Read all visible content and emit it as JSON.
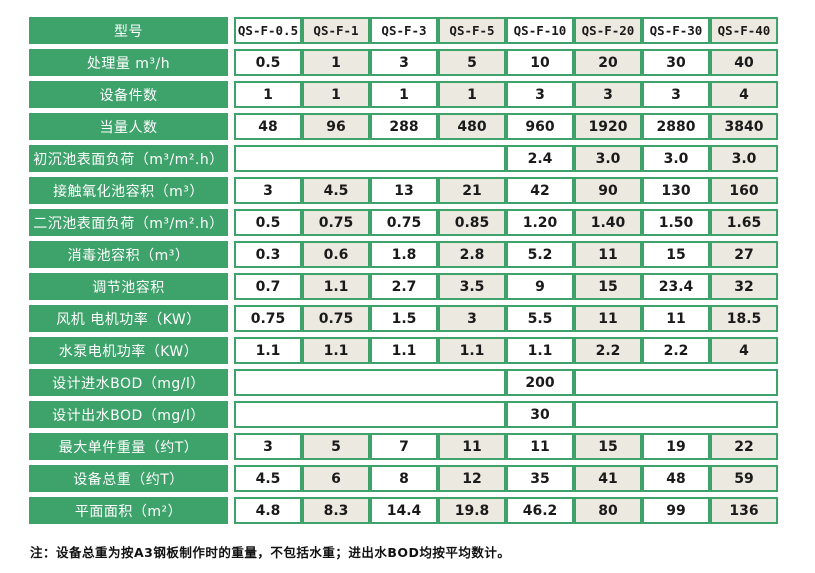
{
  "colors": {
    "green": "#3ea26b",
    "beige": "#eceae0",
    "white": "#ffffff",
    "cell_text": "#1a1a1a",
    "label_text": "#ffffff"
  },
  "table": {
    "header_label": "型号",
    "models": [
      "QS-F-0.5",
      "QS-F-1",
      "QS-F-3",
      "QS-F-5",
      "QS-F-10",
      "QS-F-20",
      "QS-F-30",
      "QS-F-40"
    ],
    "rows": [
      {
        "label": "处理量 m³/h",
        "values": [
          "0.5",
          "1",
          "3",
          "5",
          "10",
          "20",
          "30",
          "40"
        ]
      },
      {
        "label": "设备件数",
        "values": [
          "1",
          "1",
          "1",
          "1",
          "3",
          "3",
          "3",
          "4"
        ]
      },
      {
        "label": "当量人数",
        "values": [
          "48",
          "96",
          "288",
          "480",
          "960",
          "1920",
          "2880",
          "3840"
        ]
      },
      {
        "label": "初沉池表面负荷（m³/m².h）",
        "span_left_empty": 4,
        "values": [
          "2.4",
          "3.0",
          "3.0",
          "3.0"
        ]
      },
      {
        "label": "接触氧化池容积（m³）",
        "values": [
          "3",
          "4.5",
          "13",
          "21",
          "42",
          "90",
          "130",
          "160"
        ]
      },
      {
        "label": "二沉池表面负荷（m³/m².h）",
        "values": [
          "0.5",
          "0.75",
          "0.75",
          "0.85",
          "1.20",
          "1.40",
          "1.50",
          "1.65"
        ]
      },
      {
        "label": "消毒池容积（m³）",
        "values": [
          "0.3",
          "0.6",
          "1.8",
          "2.8",
          "5.2",
          "11",
          "15",
          "27"
        ]
      },
      {
        "label": "调节池容积",
        "values": [
          "0.7",
          "1.1",
          "2.7",
          "3.5",
          "9",
          "15",
          "23.4",
          "32"
        ]
      },
      {
        "label": "风机 电机功率（KW）",
        "values": [
          "0.75",
          "0.75",
          "1.5",
          "3",
          "5.5",
          "11",
          "11",
          "18.5"
        ]
      },
      {
        "label": "水泵电机功率（KW）",
        "values": [
          "1.1",
          "1.1",
          "1.1",
          "1.1",
          "1.1",
          "2.2",
          "2.2",
          "4"
        ]
      },
      {
        "label": "设计进水BOD（mg/l）",
        "span_left_empty": 4,
        "center_value": "200",
        "span_right_empty": 3
      },
      {
        "label": "设计出水BOD（mg/l）",
        "span_left_empty": 4,
        "center_value": "30",
        "span_right_empty": 3
      },
      {
        "label": "最大单件重量（约T）",
        "values": [
          "3",
          "5",
          "7",
          "11",
          "11",
          "15",
          "19",
          "22"
        ]
      },
      {
        "label": "设备总重（约T）",
        "values": [
          "4.5",
          "6",
          "8",
          "12",
          "35",
          "41",
          "48",
          "59"
        ]
      },
      {
        "label": "平面面积（m²）",
        "values": [
          "4.8",
          "8.3",
          "14.4",
          "19.8",
          "46.2",
          "80",
          "99",
          "136"
        ]
      }
    ]
  },
  "footnote": "注：设备总重为按A3钢板制作时的重量，不包括水重；进出水BOD均按平均数计。"
}
